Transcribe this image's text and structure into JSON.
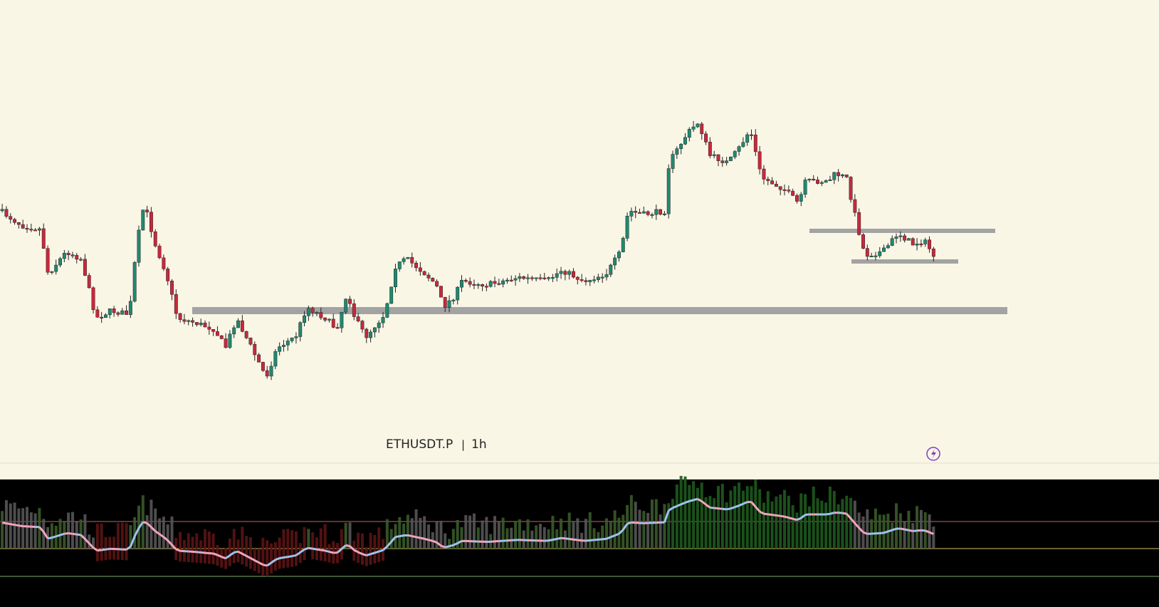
{
  "header": {
    "symbol": "ETHUSDT.P",
    "separator": "|",
    "interval": "1h"
  }
}
